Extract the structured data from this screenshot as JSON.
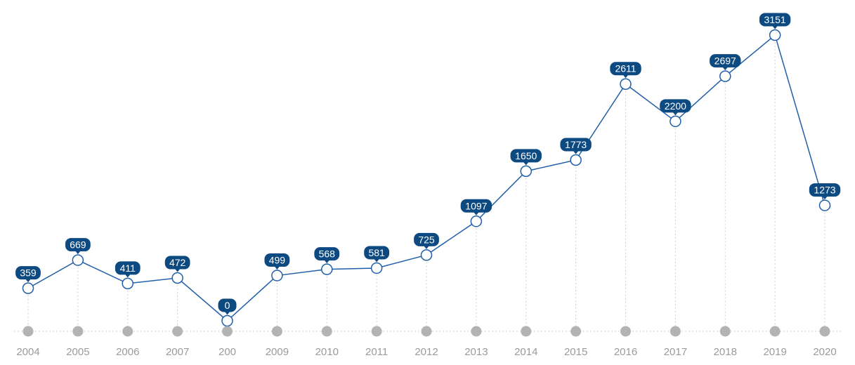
{
  "chart_data": {
    "type": "line",
    "categories": [
      "2004",
      "2005",
      "2006",
      "2007",
      "200",
      "2009",
      "2010",
      "2011",
      "2012",
      "2013",
      "2014",
      "2015",
      "2016",
      "2017",
      "2018",
      "2019",
      "2020"
    ],
    "series": [
      {
        "values": [
          359,
          669,
          411,
          472,
          0,
          499,
          568,
          581,
          725,
          1097,
          1650,
          1773,
          2611,
          2200,
          2697,
          3151,
          1273
        ],
        "labels": [
          "359",
          "669",
          "411",
          "472",
          "0",
          "499",
          "568",
          "581",
          "725",
          "1097",
          "1650",
          "1773",
          "2611",
          "2200",
          "2697",
          "3151",
          "1273"
        ]
      }
    ],
    "title": "",
    "xlabel": "",
    "ylabel": "",
    "ylim": [
      0,
      3151
    ],
    "grid": "vertical dotted drop lines",
    "legend": "none"
  },
  "colors": {
    "line": "#1f5fa8",
    "label_bg": "#0e4a82",
    "axis_dot": "#b3b3b3",
    "axis_label": "#9a9a9a",
    "dotted_line": "#cfcfcf"
  }
}
